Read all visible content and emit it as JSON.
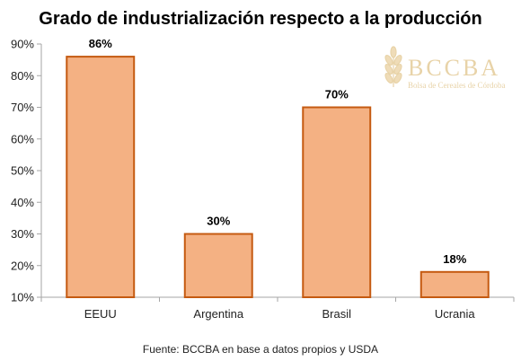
{
  "chart_data": {
    "type": "bar",
    "title": "Grado de industrialización respecto a la producción",
    "categories": [
      "EEUU",
      "Argentina",
      "Brasil",
      "Ucrania"
    ],
    "values": [
      86,
      30,
      70,
      18
    ],
    "value_labels": [
      "86%",
      "30%",
      "70%",
      "18%"
    ],
    "ylim": [
      10,
      90
    ],
    "yticks": [
      10,
      20,
      30,
      40,
      50,
      60,
      70,
      80,
      90
    ],
    "ytick_labels": [
      "10%",
      "20%",
      "30%",
      "40%",
      "50%",
      "60%",
      "70%",
      "80%",
      "90%"
    ],
    "xlabel": "",
    "ylabel": "",
    "grid": false,
    "bar_color": "#f4b183",
    "bar_edge_color": "#c55a11",
    "source": "Fuente: BCCBA en base a datos propios y USDA"
  },
  "watermark": {
    "name": "BCCBA",
    "subtitle": "Bolsa de Cereales de Córdoba",
    "icon": "wheat-icon",
    "color": "#e8d3a8"
  }
}
